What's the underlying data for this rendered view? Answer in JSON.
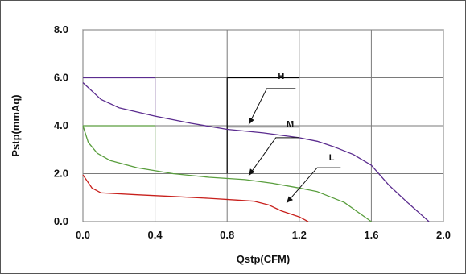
{
  "chart_data": {
    "type": "line",
    "title": "",
    "xlabel": "Qstp(CFM)",
    "ylabel": "Pstp(mmAq)",
    "xlim": [
      0.0,
      2.0
    ],
    "ylim": [
      0.0,
      8.0
    ],
    "x_ticks": [
      "0.0",
      "0.4",
      "0.8",
      "1.2",
      "1.6",
      "2.0"
    ],
    "y_ticks": [
      "0.0",
      "2.0",
      "4.0",
      "6.0",
      "8.0"
    ],
    "grid": true,
    "series": [
      {
        "name": "H",
        "color": "#5b2c8f",
        "points": [
          [
            0.0,
            5.8
          ],
          [
            0.1,
            5.1
          ],
          [
            0.2,
            4.75
          ],
          [
            0.4,
            4.4
          ],
          [
            0.6,
            4.1
          ],
          [
            0.8,
            3.85
          ],
          [
            1.0,
            3.7
          ],
          [
            1.2,
            3.5
          ],
          [
            1.3,
            3.35
          ],
          [
            1.4,
            3.1
          ],
          [
            1.5,
            2.8
          ],
          [
            1.6,
            2.35
          ],
          [
            1.7,
            1.5
          ],
          [
            1.8,
            0.8
          ],
          [
            1.92,
            0.0
          ]
        ]
      },
      {
        "name": "M",
        "color": "#5a9e3e",
        "points": [
          [
            0.0,
            4.0
          ],
          [
            0.03,
            3.3
          ],
          [
            0.08,
            2.85
          ],
          [
            0.15,
            2.55
          ],
          [
            0.3,
            2.25
          ],
          [
            0.5,
            2.0
          ],
          [
            0.7,
            1.85
          ],
          [
            0.9,
            1.75
          ],
          [
            1.05,
            1.6
          ],
          [
            1.2,
            1.4
          ],
          [
            1.3,
            1.25
          ],
          [
            1.45,
            0.8
          ],
          [
            1.6,
            0.0
          ]
        ]
      },
      {
        "name": "L",
        "color": "#c8201c",
        "points": [
          [
            0.0,
            1.95
          ],
          [
            0.05,
            1.4
          ],
          [
            0.1,
            1.2
          ],
          [
            0.3,
            1.12
          ],
          [
            0.5,
            1.05
          ],
          [
            0.7,
            0.97
          ],
          [
            0.85,
            0.9
          ],
          [
            0.95,
            0.85
          ],
          [
            1.03,
            0.7
          ],
          [
            1.1,
            0.45
          ],
          [
            1.2,
            0.2
          ],
          [
            1.25,
            0.0
          ]
        ]
      }
    ],
    "lines": [
      {
        "color": "#5b2c8f",
        "points": [
          [
            0.0,
            6.0
          ],
          [
            0.4,
            6.0
          ]
        ]
      },
      {
        "color": "#5b2c8f",
        "points": [
          [
            0.4,
            6.0
          ],
          [
            0.4,
            4.4
          ]
        ]
      },
      {
        "color": "#5a9e3e",
        "points": [
          [
            0.0,
            4.0
          ],
          [
            0.4,
            4.0
          ]
        ]
      },
      {
        "color": "#5a9e3e",
        "points": [
          [
            0.4,
            4.0
          ],
          [
            0.4,
            2.2
          ]
        ]
      },
      {
        "color": "#000000",
        "points": [
          [
            0.8,
            6.0
          ],
          [
            1.2,
            6.0
          ]
        ]
      },
      {
        "color": "#000000",
        "points": [
          [
            0.8,
            6.0
          ],
          [
            0.8,
            2.0
          ]
        ]
      },
      {
        "color": "#000000",
        "points": [
          [
            0.8,
            3.95
          ],
          [
            1.2,
            3.95
          ]
        ]
      }
    ],
    "annotations": [
      {
        "text": "H",
        "x": 1.1,
        "y": 5.95,
        "line": [
          [
            1.18,
            5.55
          ],
          [
            1.02,
            5.55
          ],
          [
            0.92,
            4.05
          ]
        ]
      },
      {
        "text": "M",
        "x": 1.15,
        "y": 3.95,
        "line": [
          [
            1.2,
            3.5
          ],
          [
            1.07,
            3.5
          ],
          [
            0.92,
            1.92
          ]
        ]
      },
      {
        "text": "L",
        "x": 1.38,
        "y": 2.55,
        "line": [
          [
            1.43,
            2.25
          ],
          [
            1.3,
            2.25
          ],
          [
            1.13,
            0.78
          ]
        ]
      }
    ]
  }
}
